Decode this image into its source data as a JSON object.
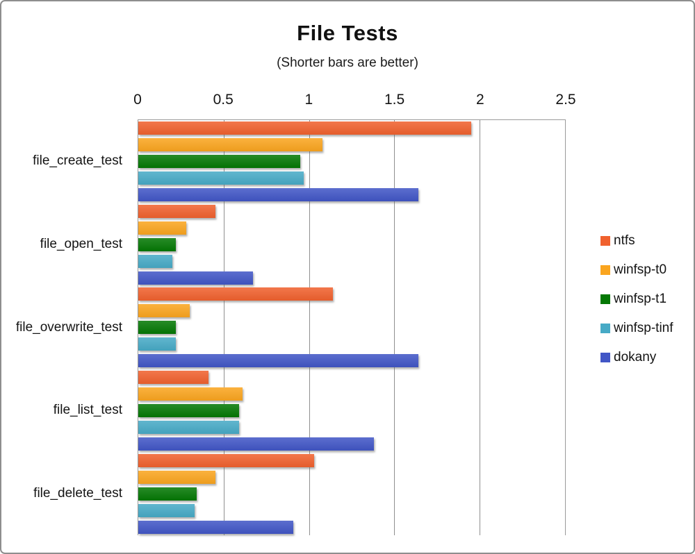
{
  "window": {
    "background": "#ffffff",
    "border_color": "#8e8e8e"
  },
  "chart_data": {
    "type": "bar",
    "orientation": "horizontal",
    "title": "File Tests",
    "subtitle": "(Shorter bars are better)",
    "xlabel": "",
    "ylabel": "",
    "xlim": [
      0,
      2.5
    ],
    "ticks": [
      0,
      0.5,
      1,
      1.5,
      2,
      2.5
    ],
    "tick_labels": [
      "0",
      "0.5",
      "1",
      "1.5",
      "2",
      "2.5"
    ],
    "grid": true,
    "gridline_color": "#8f8f8f",
    "legend_position": "right",
    "categories": [
      "file_create_test",
      "file_open_test",
      "file_overwrite_test",
      "file_list_test",
      "file_delete_test"
    ],
    "series": [
      {
        "name": "ntfs",
        "color": "#F0612E",
        "values": [
          1.95,
          0.45,
          1.14,
          0.41,
          1.03
        ]
      },
      {
        "name": "winfsp-t0",
        "color": "#FAA51F",
        "values": [
          1.08,
          0.28,
          0.3,
          0.61,
          0.45
        ]
      },
      {
        "name": "winfsp-t1",
        "color": "#047804",
        "values": [
          0.95,
          0.22,
          0.22,
          0.59,
          0.34
        ]
      },
      {
        "name": "winfsp-tinf",
        "color": "#47AAC6",
        "values": [
          0.97,
          0.2,
          0.22,
          0.59,
          0.33
        ]
      },
      {
        "name": "dokany",
        "color": "#4156C6",
        "values": [
          1.64,
          0.67,
          1.64,
          1.38,
          0.91
        ]
      }
    ]
  }
}
